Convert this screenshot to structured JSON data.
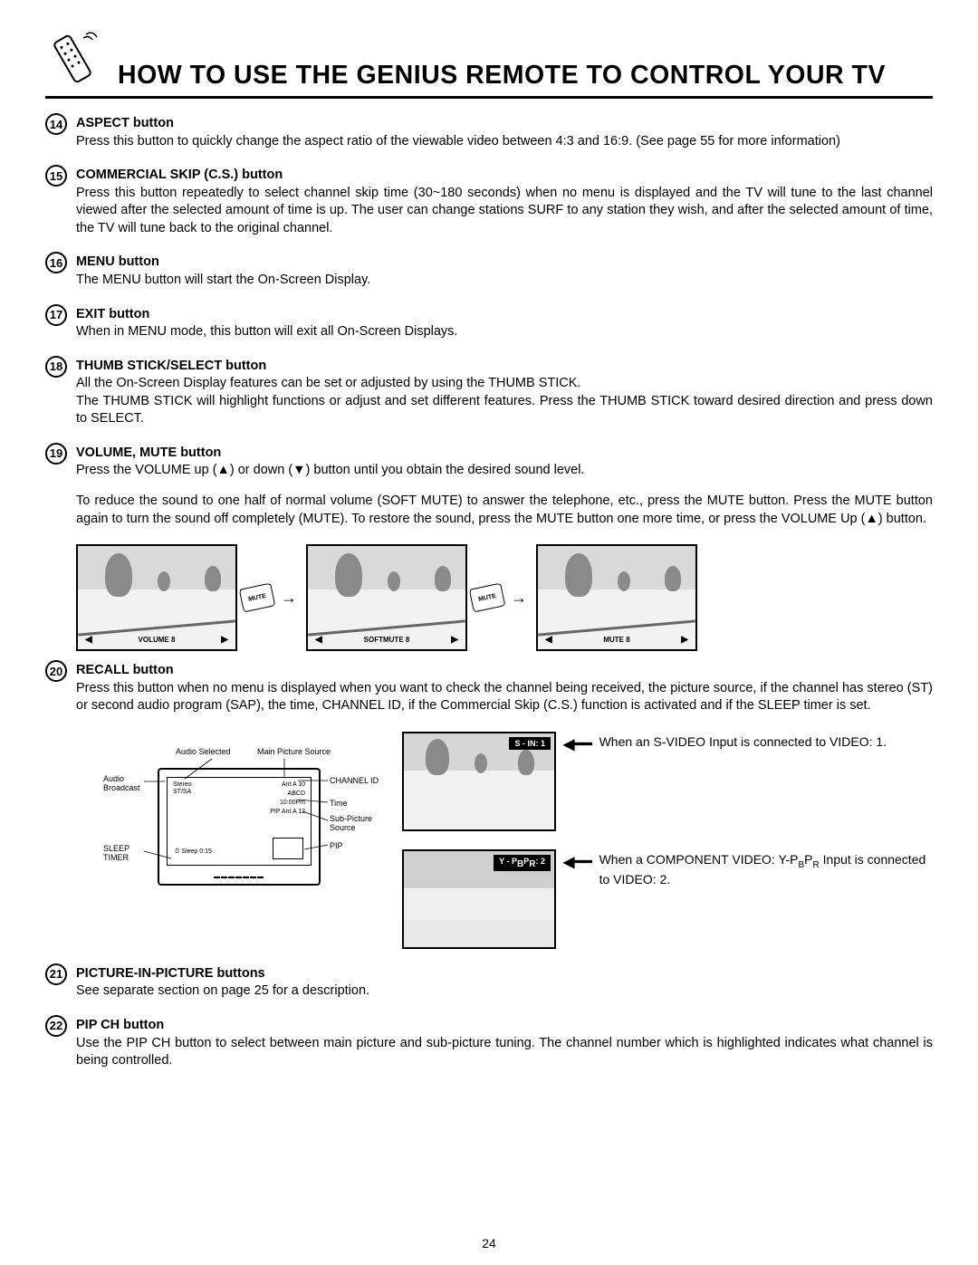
{
  "page": {
    "title": "HOW TO USE THE GENIUS REMOTE TO CONTROL YOUR TV",
    "number": "24"
  },
  "items": [
    {
      "num": "14",
      "title": "ASPECT button",
      "paras": [
        "Press this button to quickly change the aspect ratio of the viewable video between 4:3 and 16:9. (See page 55 for more information)"
      ]
    },
    {
      "num": "15",
      "title": "COMMERCIAL SKIP (C.S.) button",
      "paras": [
        "Press this button repeatedly to select channel skip time (30~180 seconds) when no menu is displayed and the TV will tune to the last channel viewed after the selected amount of time is up. The user can change stations  SURF  to any station they wish, and after the selected amount of time, the TV will tune back to the original channel."
      ]
    },
    {
      "num": "16",
      "title": "MENU button",
      "paras": [
        "The MENU button will start the On-Screen Display."
      ]
    },
    {
      "num": "17",
      "title": "EXIT button",
      "paras": [
        "When in MENU mode, this button will exit all On-Screen Displays."
      ]
    },
    {
      "num": "18",
      "title": "THUMB STICK/SELECT button",
      "paras": [
        "All the On-Screen Display features can be set or adjusted by using the THUMB STICK.\nThe THUMB STICK will highlight functions or adjust and set different features.  Press the THUMB STICK toward desired direction and press down to SELECT."
      ]
    },
    {
      "num": "19",
      "title": "VOLUME, MUTE button",
      "paras": [
        "Press the VOLUME up (▲) or down (▼) button until you obtain the desired sound level.",
        "To reduce the sound to one half of normal volume (SOFT MUTE) to answer the telephone, etc., press the MUTE button.  Press the MUTE button again to turn the sound off completely (MUTE).  To restore the sound, press the MUTE button one more time, or press the VOLUME Up (▲) button."
      ]
    },
    {
      "num": "20",
      "title": "RECALL button",
      "paras": [
        "Press this button when no menu is displayed when you want to check the channel being received, the picture source, if the channel has stereo (ST) or second audio program (SAP), the time, CHANNEL ID, if the Commercial Skip (C.S.) function is activated and if the SLEEP timer is set."
      ]
    },
    {
      "num": "21",
      "title": "PICTURE-IN-PICTURE buttons",
      "paras": [
        "See separate section on page 25 for a description."
      ]
    },
    {
      "num": "22",
      "title": "PIP CH button",
      "paras": [
        "Use the PIP CH button to select between main picture and sub-picture tuning.  The channel number which is highlighted indicates what channel is being controlled."
      ]
    }
  ],
  "mute_sequence": {
    "screens": [
      {
        "label": "VOLUME  8"
      },
      {
        "label": "SOFTMUTE  8"
      },
      {
        "label": "MUTE  8"
      }
    ],
    "button_label": "MUTE"
  },
  "diagram": {
    "labels": {
      "audio_selected": "Audio Selected",
      "main_picture_source": "Main Picture Source",
      "audio_broadcast": "Audio\nBroadcast",
      "channel_id": "CHANNEL ID",
      "time": "Time",
      "sub_picture_source": "Sub-Picture\nSource",
      "pip": "PIP",
      "sleep_timer": "SLEEP\nTIMER",
      "stereo": "Stereo\nST/SA",
      "ant_a_10": "Ant A   10",
      "abcd": "ABCD",
      "clock": "10:00Pm",
      "pip_ant": "PIP Ant A   12",
      "sleep": "Sleep 0:15"
    }
  },
  "info_boxes": [
    {
      "badge": "S - IN: 1",
      "text": "When an S-VIDEO Input is connected to VIDEO: 1."
    },
    {
      "badge": "Y - PBPR: 2",
      "text": "When a COMPONENT VIDEO: Y-PBPR Input is connected to VIDEO: 2."
    }
  ],
  "colors": {
    "text": "#000000",
    "bg": "#ffffff",
    "rule": "#000000",
    "screen_bg": "#dcdcdc",
    "screen_ground": "#f2f2f2",
    "badge_bg": "#000000",
    "badge_fg": "#ffffff"
  }
}
